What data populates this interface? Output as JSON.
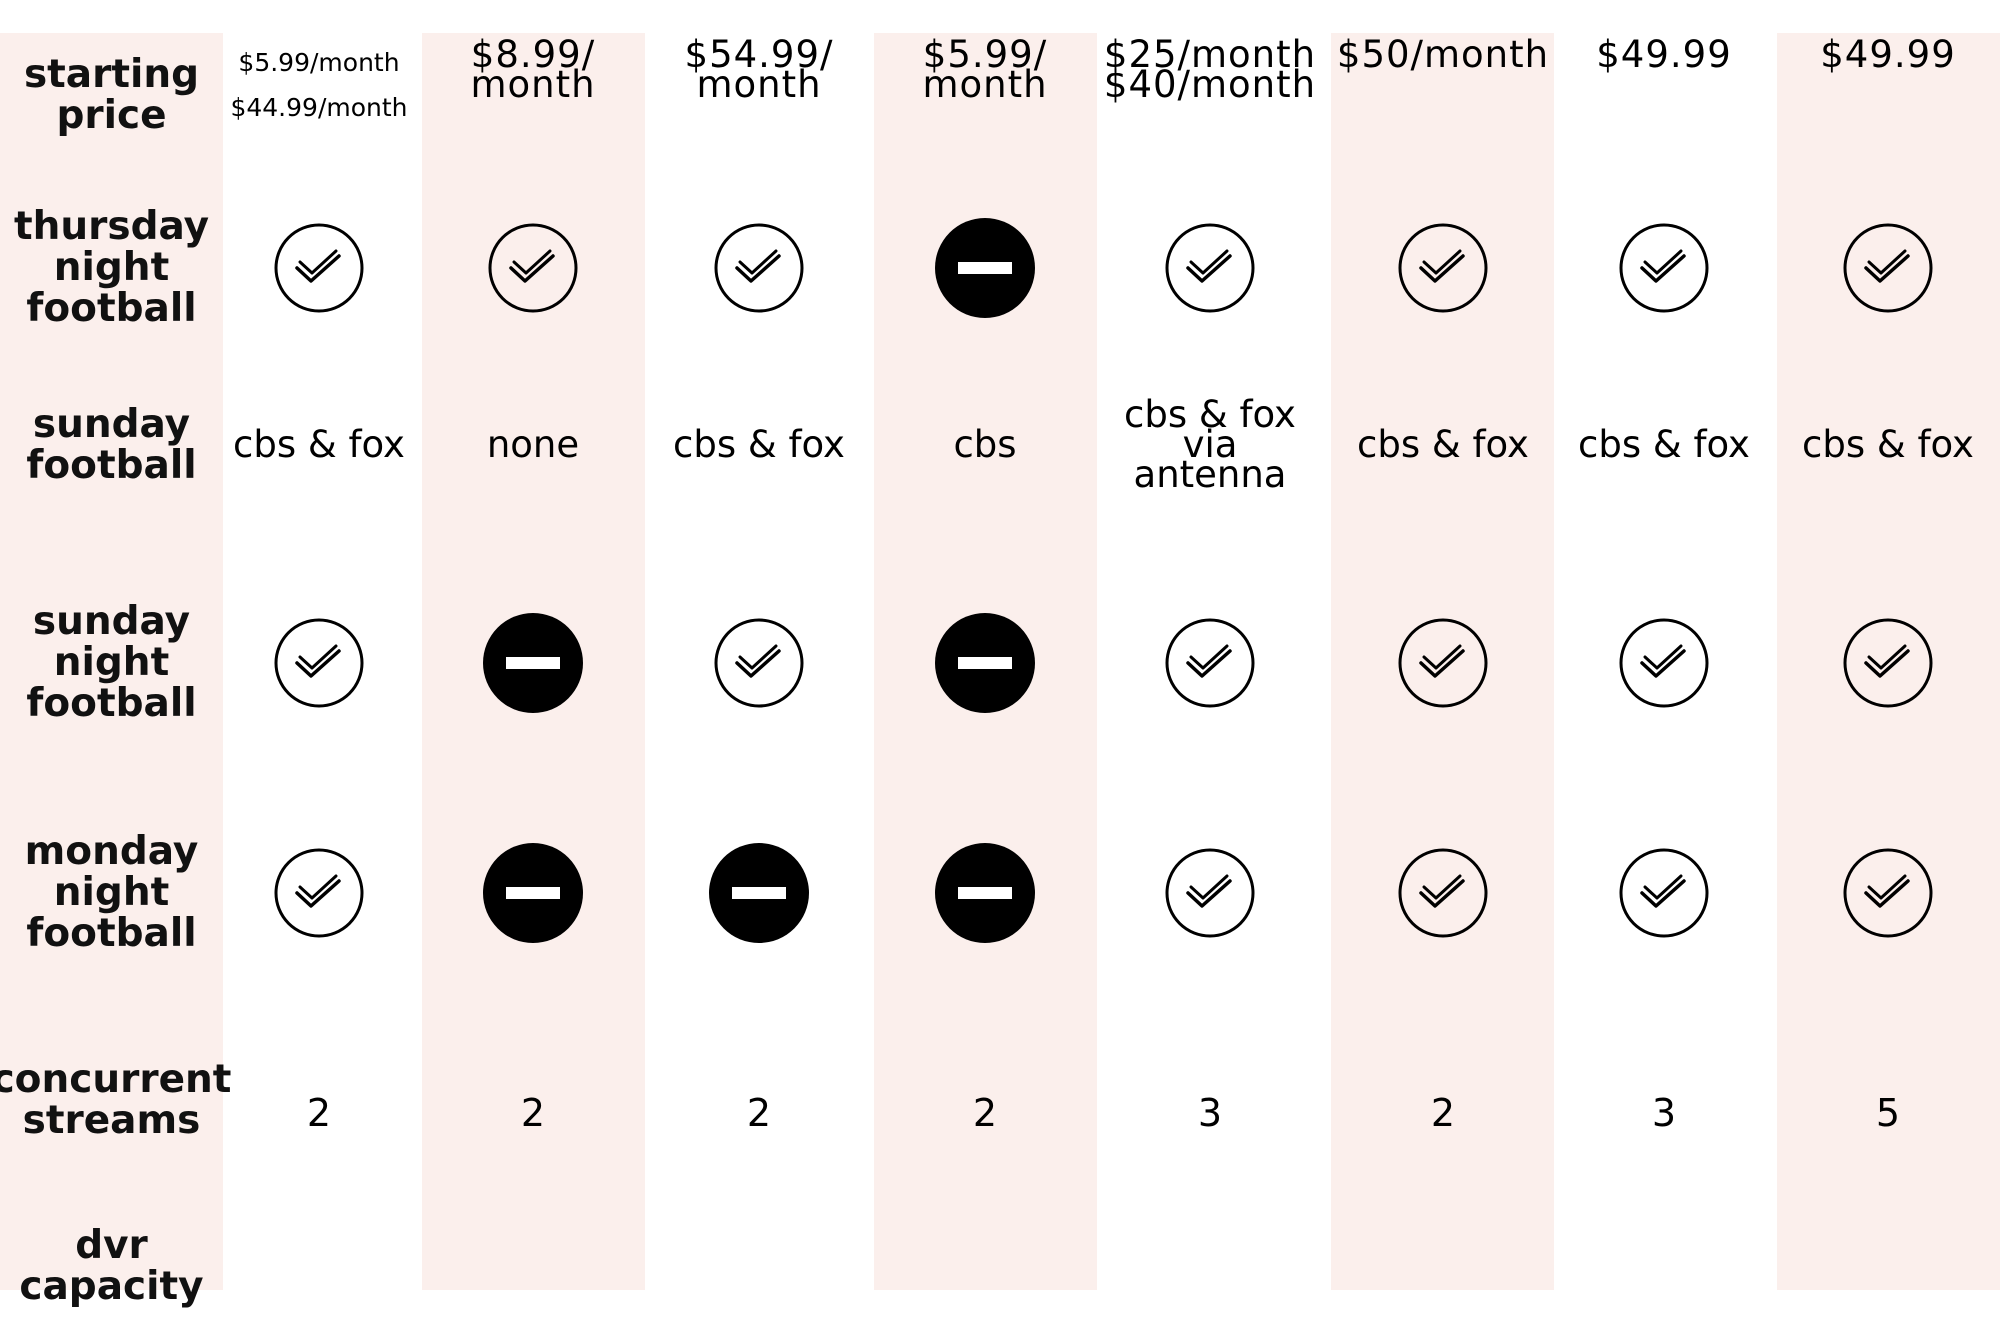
{
  "colors": {
    "band": "#fbefec",
    "ink": "#000000"
  },
  "rows": {
    "starting_price": {
      "label": [
        "starting",
        "price"
      ]
    },
    "thursday_night_football": {
      "label": [
        "thursday",
        "night",
        "football"
      ]
    },
    "sunday_football": {
      "label": [
        "sunday",
        "football"
      ]
    },
    "sunday_night_football": {
      "label": [
        "sunday",
        "night",
        "football"
      ]
    },
    "monday_night_football": {
      "label": [
        "monday",
        "night",
        "football"
      ]
    },
    "concurrent_streams": {
      "label": [
        "concurrent",
        "streams"
      ]
    },
    "dvr_capacity": {
      "label": [
        "dvr",
        "capacity"
      ]
    }
  },
  "columns": [
    {
      "price": [
        "$5.99/month",
        "$44.99/month"
      ],
      "thursday": "check-icon",
      "sunday": [
        "cbs & fox"
      ],
      "sunday_night": "check-icon",
      "monday_night": "check-icon",
      "streams": "2"
    },
    {
      "price": [
        "$8.99/",
        "month"
      ],
      "thursday": "check-icon",
      "sunday": [
        "none"
      ],
      "sunday_night": "minus-icon",
      "monday_night": "minus-icon",
      "streams": "2"
    },
    {
      "price": [
        "$54.99/",
        "month"
      ],
      "thursday": "check-icon",
      "sunday": [
        "cbs & fox"
      ],
      "sunday_night": "check-icon",
      "monday_night": "minus-icon",
      "streams": "2"
    },
    {
      "price": [
        "$5.99/",
        "month"
      ],
      "thursday": "minus-icon",
      "sunday": [
        "cbs"
      ],
      "sunday_night": "minus-icon",
      "monday_night": "minus-icon",
      "streams": "2"
    },
    {
      "price": [
        "$25/month",
        "$40/month"
      ],
      "thursday": "check-icon",
      "sunday": [
        "cbs & fox",
        "via",
        "antenna"
      ],
      "sunday_night": "check-icon",
      "monday_night": "check-icon",
      "streams": "3"
    },
    {
      "price": [
        "$50/month"
      ],
      "thursday": "check-icon",
      "sunday": [
        "cbs & fox"
      ],
      "sunday_night": "check-icon",
      "monday_night": "check-icon",
      "streams": "2"
    },
    {
      "price": [
        "$49.99"
      ],
      "thursday": "check-icon",
      "sunday": [
        "cbs & fox"
      ],
      "sunday_night": "check-icon",
      "monday_night": "check-icon",
      "streams": "3"
    },
    {
      "price": [
        "$49.99"
      ],
      "thursday": "check-icon",
      "sunday": [
        "cbs & fox"
      ],
      "sunday_night": "check-icon",
      "monday_night": "check-icon",
      "streams": "5"
    }
  ]
}
